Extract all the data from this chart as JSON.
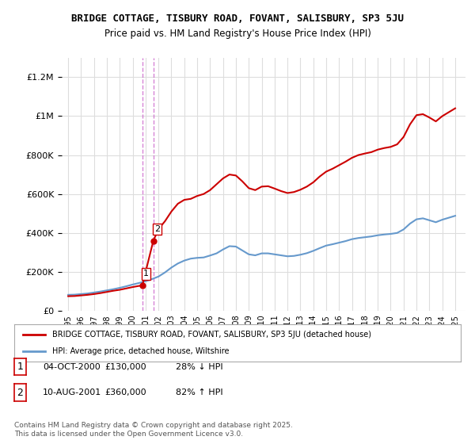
{
  "title": "BRIDGE COTTAGE, TISBURY ROAD, FOVANT, SALISBURY, SP3 5JU",
  "subtitle": "Price paid vs. HM Land Registry's House Price Index (HPI)",
  "footnote": "Contains HM Land Registry data © Crown copyright and database right 2025.\nThis data is licensed under the Open Government Licence v3.0.",
  "legend_line1": "BRIDGE COTTAGE, TISBURY ROAD, FOVANT, SALISBURY, SP3 5JU (detached house)",
  "legend_line2": "HPI: Average price, detached house, Wiltshire",
  "transactions": [
    {
      "num": 1,
      "date": "04-OCT-2000",
      "price": 130000,
      "pct": "28%",
      "dir": "↓",
      "year": 2000.75
    },
    {
      "num": 2,
      "date": "10-AUG-2001",
      "price": 360000,
      "pct": "82%",
      "dir": "↑",
      "year": 2001.6
    }
  ],
  "property_color": "#cc0000",
  "hpi_color": "#6699cc",
  "dashed_line_color": "#cc66cc",
  "background_color": "#ffffff",
  "grid_color": "#dddddd",
  "ylim": [
    0,
    1300000
  ],
  "xlim_start": 1995,
  "xlim_end": 2025.5,
  "hpi_years": [
    1995,
    1995.5,
    1996,
    1996.5,
    1997,
    1997.5,
    1998,
    1998.5,
    1999,
    1999.5,
    2000,
    2000.5,
    2001,
    2001.5,
    2002,
    2002.5,
    2003,
    2003.5,
    2004,
    2004.5,
    2005,
    2005.5,
    2006,
    2006.5,
    2007,
    2007.5,
    2008,
    2008.5,
    2009,
    2009.5,
    2010,
    2010.5,
    2011,
    2011.5,
    2012,
    2012.5,
    2013,
    2013.5,
    2014,
    2014.5,
    2015,
    2015.5,
    2016,
    2016.5,
    2017,
    2017.5,
    2018,
    2018.5,
    2019,
    2019.5,
    2020,
    2020.5,
    2021,
    2021.5,
    2022,
    2022.5,
    2023,
    2023.5,
    2024,
    2024.5,
    2025
  ],
  "hpi_values": [
    82000,
    83000,
    86000,
    89000,
    94000,
    99000,
    105000,
    111000,
    118000,
    126000,
    135000,
    143000,
    152000,
    163000,
    176000,
    197000,
    222000,
    243000,
    258000,
    268000,
    272000,
    274000,
    284000,
    295000,
    315000,
    332000,
    330000,
    310000,
    290000,
    285000,
    295000,
    295000,
    290000,
    285000,
    280000,
    282000,
    288000,
    296000,
    308000,
    322000,
    335000,
    342000,
    350000,
    358000,
    368000,
    374000,
    378000,
    382000,
    388000,
    392000,
    395000,
    400000,
    418000,
    448000,
    470000,
    475000,
    465000,
    455000,
    468000,
    478000,
    488000
  ],
  "prop_years": [
    1995,
    1995.5,
    1996,
    1996.5,
    1997,
    1997.5,
    1998,
    1998.5,
    1999,
    1999.5,
    2000,
    2000.5,
    2000.75,
    2001,
    2001.6,
    2002,
    2002.5,
    2003,
    2003.5,
    2004,
    2004.5,
    2005,
    2005.5,
    2006,
    2006.5,
    2007,
    2007.5,
    2008,
    2008.5,
    2009,
    2009.5,
    2010,
    2010.5,
    2011,
    2011.5,
    2012,
    2012.5,
    2013,
    2013.5,
    2014,
    2014.5,
    2015,
    2015.5,
    2016,
    2016.5,
    2017,
    2017.5,
    2018,
    2018.5,
    2019,
    2019.5,
    2020,
    2020.5,
    2021,
    2021.5,
    2022,
    2022.5,
    2023,
    2023.5,
    2024,
    2024.5,
    2025
  ],
  "prop_values": [
    75000,
    76000,
    79000,
    82000,
    86000,
    91000,
    97000,
    103000,
    108000,
    115000,
    122000,
    128000,
    130000,
    200000,
    360000,
    420000,
    460000,
    510000,
    550000,
    570000,
    575000,
    590000,
    600000,
    620000,
    650000,
    680000,
    700000,
    695000,
    665000,
    630000,
    620000,
    638000,
    640000,
    628000,
    615000,
    605000,
    610000,
    622000,
    638000,
    660000,
    690000,
    715000,
    730000,
    748000,
    766000,
    786000,
    800000,
    808000,
    815000,
    828000,
    836000,
    842000,
    855000,
    893000,
    958000,
    1005000,
    1010000,
    993000,
    973000,
    1000000,
    1020000,
    1040000
  ]
}
